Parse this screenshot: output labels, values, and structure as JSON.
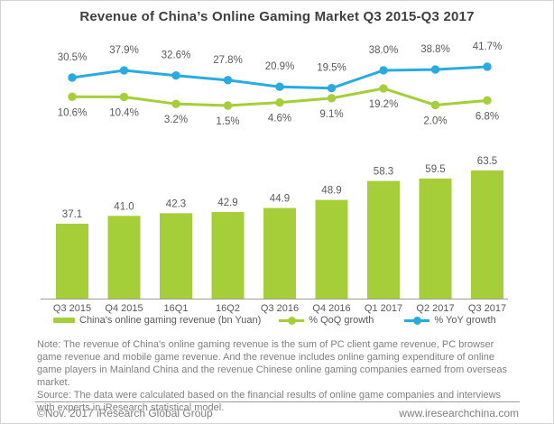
{
  "title": "Revenue of China’s Online Gaming Market Q3 2015-Q3 2017",
  "chart_data": {
    "type": "bar",
    "categories": [
      "Q3 2015",
      "Q4 2015",
      "16Q1",
      "16Q2",
      "Q3 2016",
      "Q4 2016",
      "Q1 2017",
      "Q2 2017",
      "Q3 2017"
    ],
    "series": [
      {
        "name": "China's online gaming revenue (bn Yuan)",
        "type": "bar",
        "values": [
          37.1,
          41.0,
          42.3,
          42.9,
          44.9,
          48.9,
          58.3,
          59.5,
          63.5
        ],
        "color": "#a5ce39"
      },
      {
        "name": "% QoQ growth",
        "type": "line",
        "values": [
          10.6,
          10.4,
          3.2,
          1.5,
          4.6,
          9.1,
          19.2,
          2.0,
          6.8
        ],
        "color": "#a5ce39"
      },
      {
        "name": "% YoY growth",
        "type": "line",
        "values": [
          30.5,
          37.9,
          32.6,
          27.8,
          20.9,
          19.5,
          38.0,
          38.8,
          41.7
        ],
        "color": "#29abe2"
      }
    ],
    "title": "Revenue of China’s Online Gaming Market Q3 2015-Q3 2017",
    "xlabel": "",
    "ylabel": "",
    "grid": false,
    "legend_position": "bottom",
    "bar_value_format": "one-decimal",
    "line_value_format": "one-decimal-percent",
    "label_color": "#595959",
    "axis_color": "#9c9c9c"
  },
  "note": {
    "note": "Note: The revenue of China's online gaming revenue is the sum of PC client game revenue, PC browser game revenue and mobile game revenue. And the revenue includes online gaming expenditure of online game players in Mainland China and the revenue Chinese online gaming companies earned from overseas market.",
    "source": "Source: The data were calculated based on the financial results of online game companies and interviews with experts in iResearch statistical model."
  },
  "footer": {
    "left": "©Nov. 2017 iResearch Global Group",
    "right": "www.iresearchchina.com"
  }
}
